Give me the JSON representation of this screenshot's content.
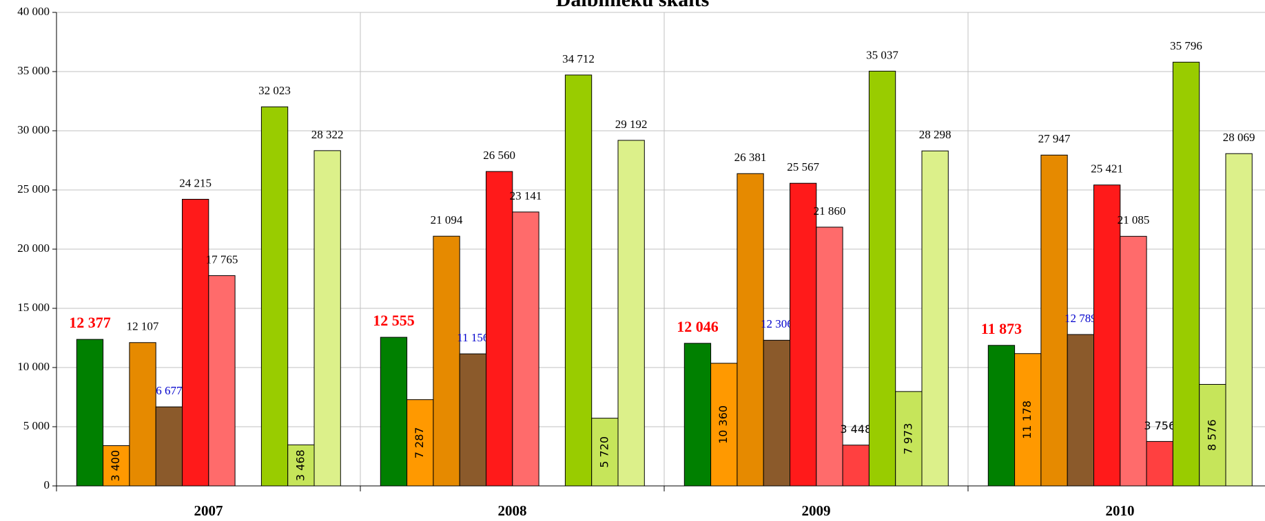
{
  "chart_data": {
    "type": "bar",
    "title": "Dalbinieku skaits",
    "categories": [
      "2007",
      "2008",
      "2009",
      "2010"
    ],
    "series": [
      {
        "color": "#008000",
        "values": [
          12377,
          12555,
          12046,
          11873
        ],
        "value_labels": [
          "12 377",
          "12 555",
          "12 046",
          "11 873"
        ]
      },
      {
        "color": "#ff9900",
        "values": [
          3400,
          7287,
          10360,
          11178
        ],
        "value_labels": [
          "3 400",
          "7 287",
          "10 360",
          "11 178"
        ]
      },
      {
        "color": "#e68a00",
        "values": [
          12107,
          21094,
          26381,
          27947
        ],
        "value_labels": [
          "12 107",
          "21 094",
          "26 381",
          "27 947"
        ]
      },
      {
        "color": "#8b5a2b",
        "values": [
          6677,
          11156,
          12306,
          12789
        ],
        "value_labels": [
          "6 677",
          "11 156",
          "12 306",
          "12 789"
        ]
      },
      {
        "color": "#ff1a1a",
        "values": [
          24215,
          26560,
          25567,
          25421
        ],
        "value_labels": [
          "24 215",
          "26 560",
          "25 567",
          "25 421"
        ]
      },
      {
        "color": "#ff6b6b",
        "values": [
          17765,
          23141,
          21860,
          21085
        ],
        "value_labels": [
          "17 765",
          "23 141",
          "21 860",
          "21 085"
        ]
      },
      {
        "color": "#ff4040",
        "values": [
          null,
          null,
          3448,
          3756
        ],
        "value_labels": [
          null,
          null,
          "3 448",
          "3 756"
        ]
      },
      {
        "color": "#99cc00",
        "values": [
          32023,
          34712,
          35037,
          35796
        ],
        "value_labels": [
          "32 023",
          "34 712",
          "35 037",
          "35 796"
        ]
      },
      {
        "color": "#c6e55a",
        "values": [
          3468,
          5720,
          7973,
          8576
        ],
        "value_labels": [
          "3 468",
          "5 720",
          "7 973",
          "8 576"
        ]
      },
      {
        "color": "#dcf08a",
        "values": [
          28322,
          29192,
          28298,
          28069
        ],
        "value_labels": [
          "28 322",
          "29 192",
          "28 298",
          "28 069"
        ]
      }
    ],
    "ylim": [
      0,
      40000
    ],
    "yticks": [
      0,
      {
        "value": 5000,
        "label": "5 000"
      },
      {
        "value": 10000,
        "label": "10 000"
      },
      {
        "value": 15000,
        "label": "15 000"
      },
      {
        "value": 20000,
        "label": "20 000"
      },
      {
        "value": 25000,
        "label": "25 000"
      },
      {
        "value": 30000,
        "label": "30 000"
      },
      {
        "value": 35000,
        "label": "35 000"
      },
      {
        "value": 40000,
        "label": "40 000"
      }
    ],
    "grid": true
  }
}
